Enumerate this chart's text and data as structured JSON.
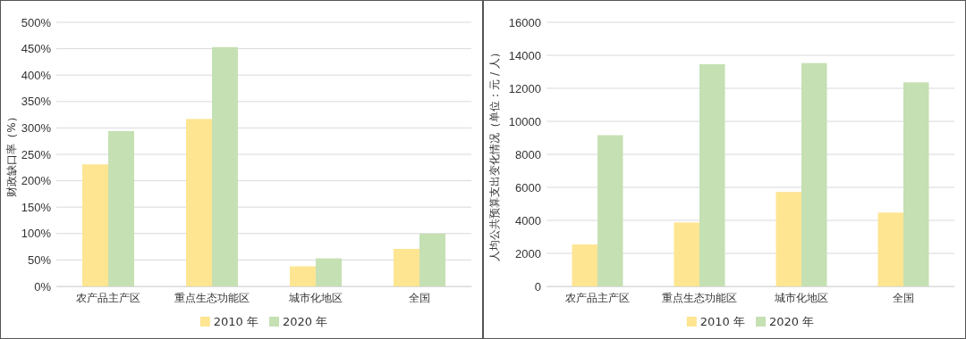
{
  "chart_data": [
    {
      "type": "bar",
      "ylabel": "财政缺口率（%）",
      "categories": [
        "农产品主产区",
        "重点生态功能区",
        "城市化地区",
        "全国"
      ],
      "series": [
        {
          "name": "2010 年",
          "color": "#fde592",
          "values": [
            231,
            317,
            38,
            71
          ]
        },
        {
          "name": "2020 年",
          "color": "#c5e0b3",
          "values": [
            294,
            453,
            53,
            100
          ]
        }
      ],
      "ylim": [
        0,
        500
      ],
      "yticks": [
        {
          "value": 0,
          "label": "0%"
        },
        {
          "value": 50,
          "label": "50%"
        },
        {
          "value": 100,
          "label": "100%"
        },
        {
          "value": 150,
          "label": "150%"
        },
        {
          "value": 200,
          "label": "200%"
        },
        {
          "value": 250,
          "label": "250%"
        },
        {
          "value": 300,
          "label": "300%"
        },
        {
          "value": 350,
          "label": "350%"
        },
        {
          "value": 400,
          "label": "400%"
        },
        {
          "value": 450,
          "label": "450%"
        },
        {
          "value": 500,
          "label": "500%"
        }
      ],
      "grid": "y",
      "legend": "bottom"
    },
    {
      "type": "bar",
      "ylabel": "人均公共预算支出变化情况（单位：元 / 人）",
      "categories": [
        "农产品主产区",
        "重点生态功能区",
        "城市化地区",
        "全国"
      ],
      "series": [
        {
          "name": "2010 年",
          "color": "#fde592",
          "values": [
            2540,
            3870,
            5720,
            4470
          ]
        },
        {
          "name": "2020 年",
          "color": "#c5e0b3",
          "values": [
            9160,
            13460,
            13530,
            12360
          ]
        }
      ],
      "ylim": [
        0,
        16000
      ],
      "yticks": [
        0,
        2000,
        4000,
        6000,
        8000,
        10000,
        12000,
        14000,
        16000
      ],
      "grid": "y",
      "legend": "bottom"
    }
  ]
}
